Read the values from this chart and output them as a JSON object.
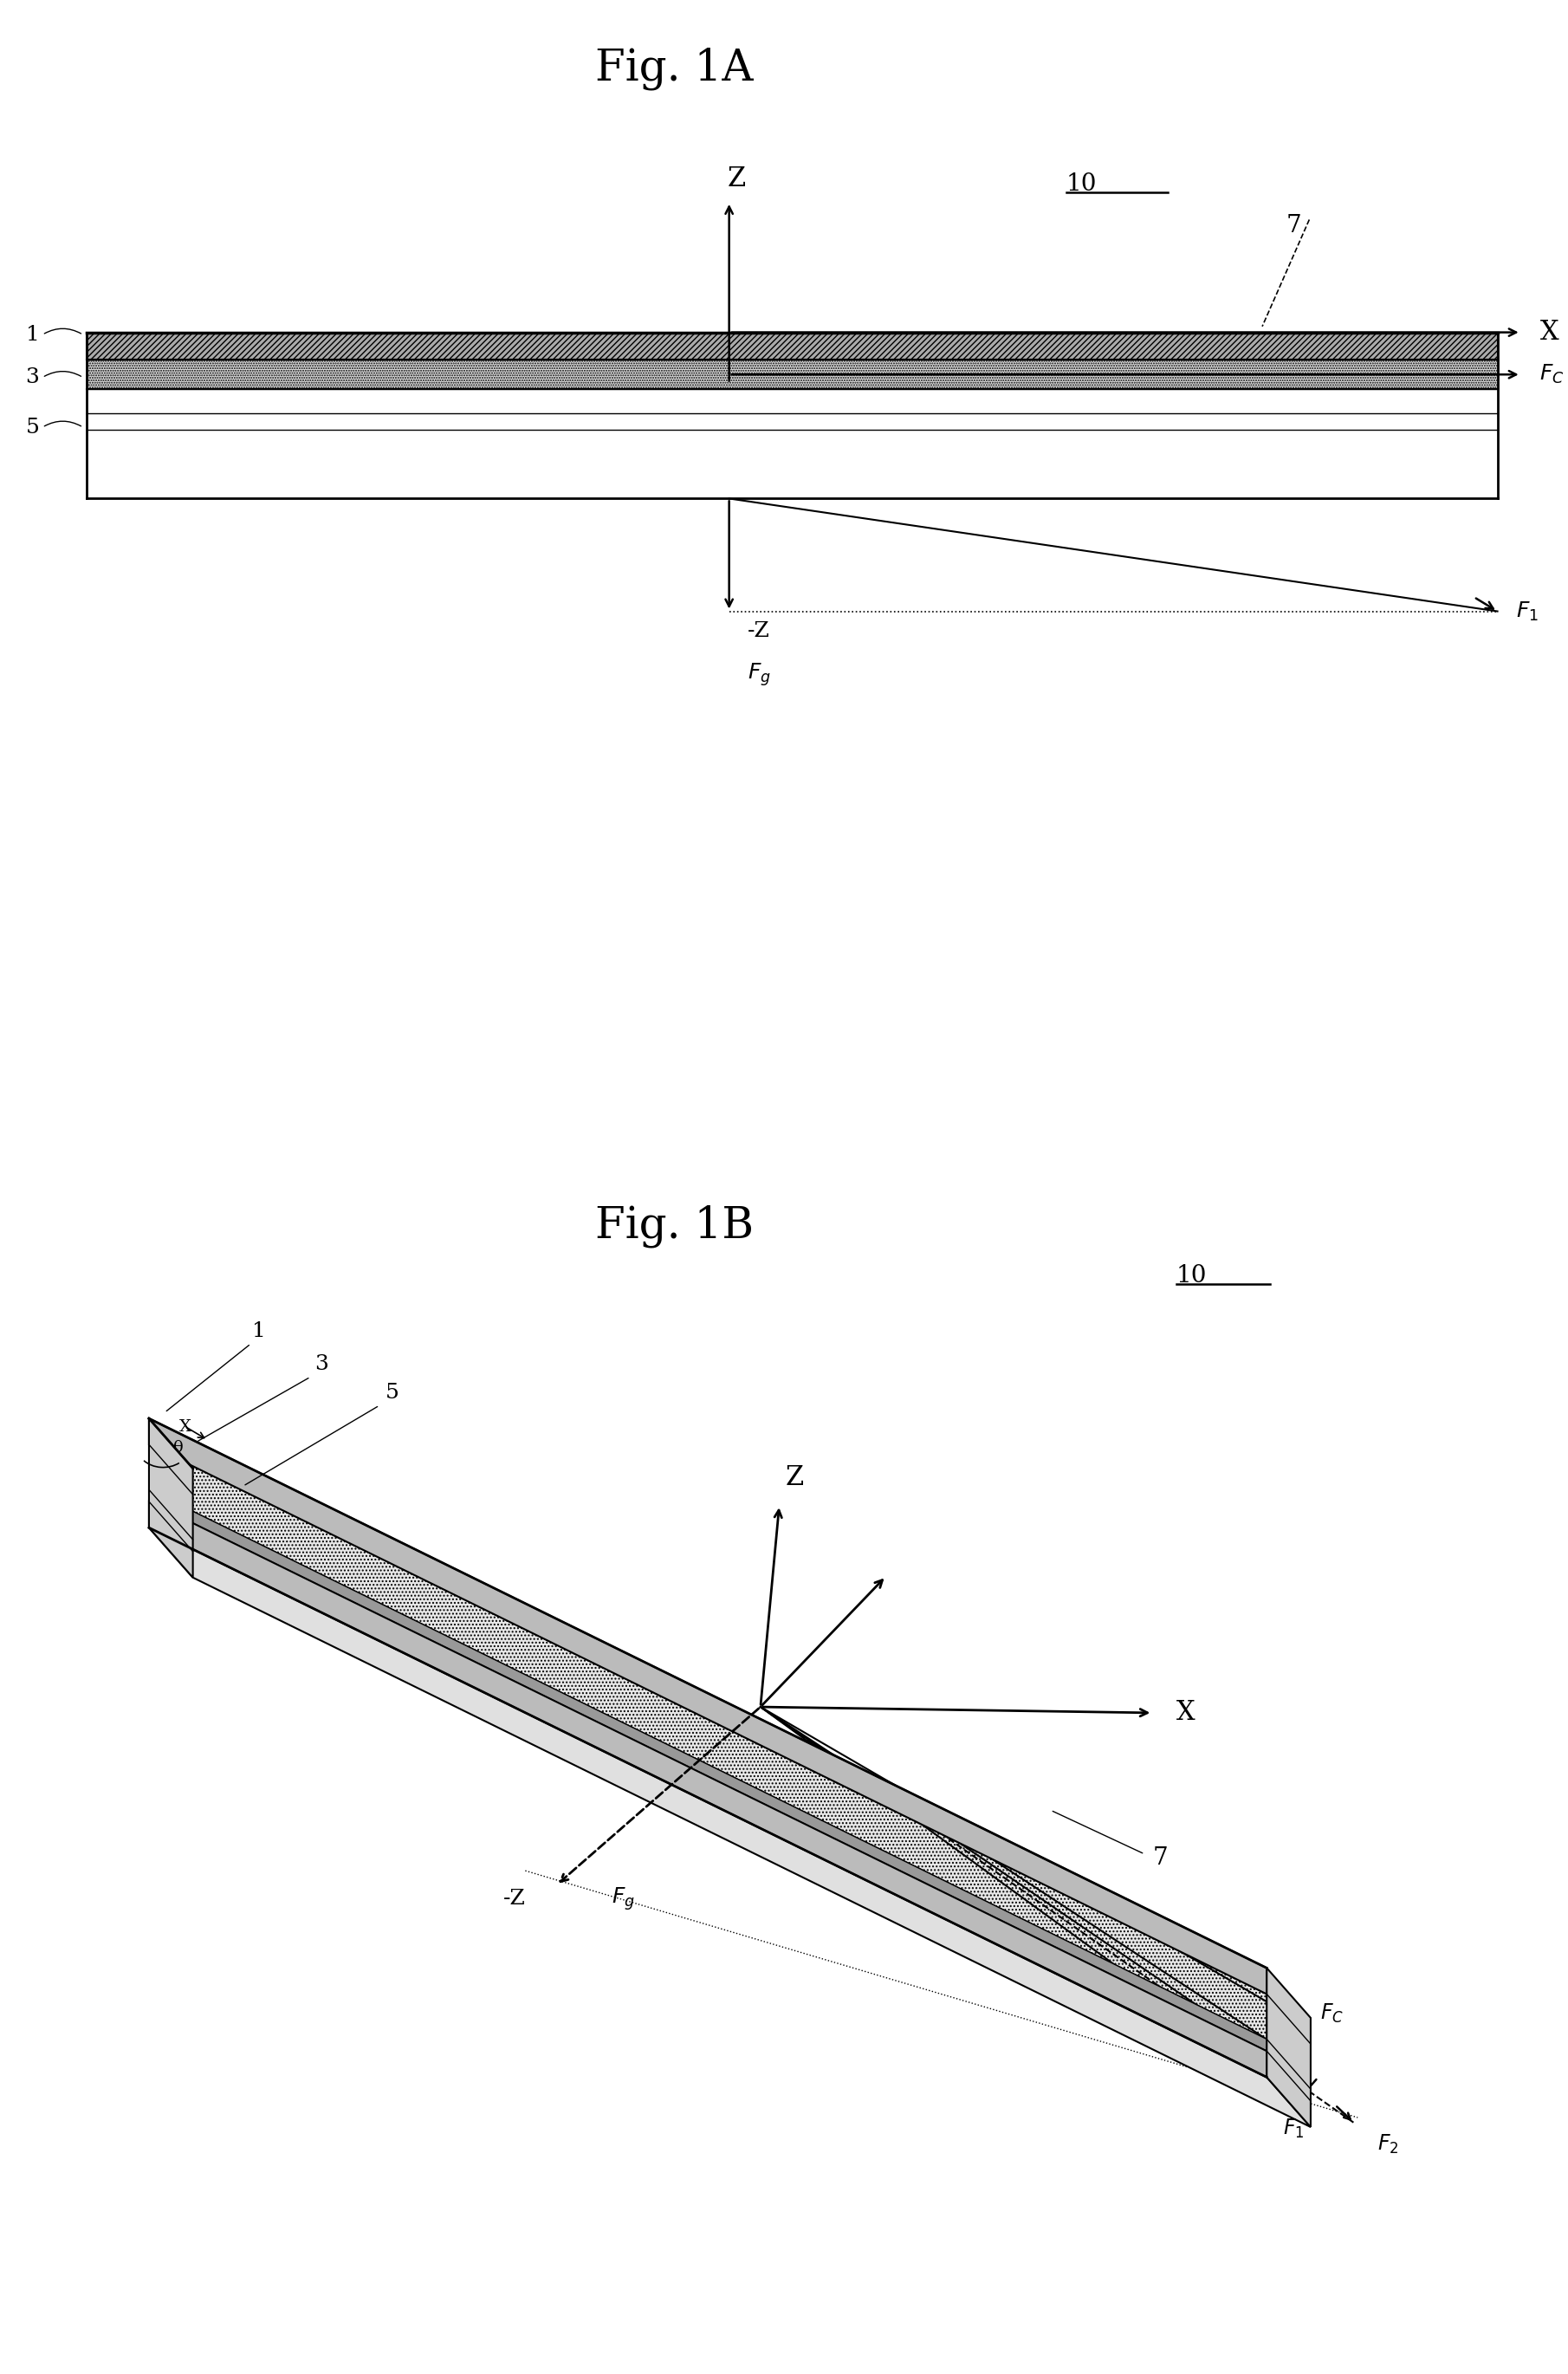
{
  "fig_title_A": "Fig. 1A",
  "fig_title_B": "Fig. 1B",
  "bg_color": "#ffffff",
  "line_color": "#000000"
}
